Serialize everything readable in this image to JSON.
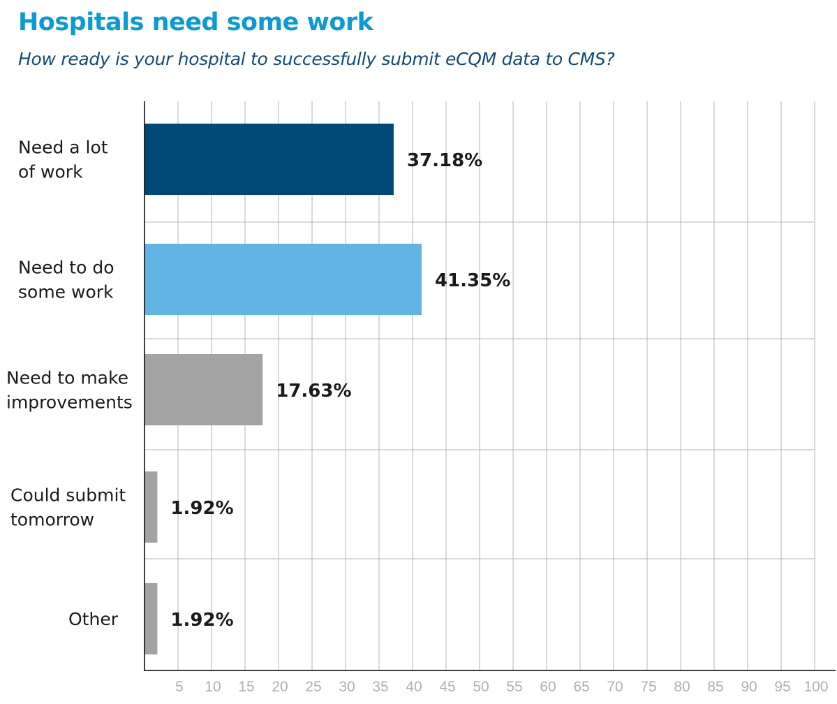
{
  "chart_data": {
    "type": "bar",
    "orientation": "horizontal",
    "title": "Hospitals need some work",
    "subtitle": "How ready is your hospital to successfully submit eCQM data to CMS?",
    "categories": [
      [
        "Need a lot",
        "of work"
      ],
      [
        "Need to do",
        "some work"
      ],
      [
        "Need to make",
        "improvements"
      ],
      [
        "Could submit",
        "tomorrow"
      ],
      [
        "Other"
      ]
    ],
    "values": [
      37.18,
      41.35,
      17.63,
      1.92,
      1.92
    ],
    "value_labels": [
      "37.18%",
      "41.35%",
      "17.63%",
      "1.92%",
      "1.92%"
    ],
    "colors": [
      "#004876",
      "#62b4e4",
      "#a3a3a3",
      "#a3a3a3",
      "#a3a3a3"
    ],
    "xlim": [
      0,
      100
    ],
    "xticks": [
      5,
      10,
      15,
      20,
      25,
      30,
      35,
      40,
      45,
      50,
      55,
      60,
      65,
      70,
      75,
      80,
      85,
      90,
      95,
      100
    ],
    "grid": true,
    "xlabel": "",
    "ylabel": ""
  }
}
